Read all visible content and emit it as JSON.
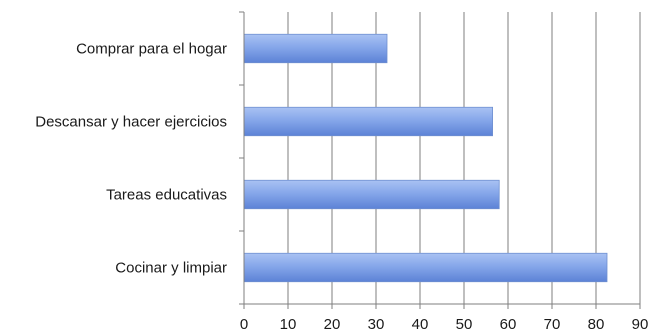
{
  "chart_data": {
    "type": "bar",
    "orientation": "horizontal",
    "categories": [
      "Comprar para el hogar",
      "Descansar y hacer ejercicios",
      "Tareas educativas",
      "Cocinar y limpiar"
    ],
    "values": [
      32.5,
      56.5,
      58,
      82.5
    ],
    "xlim": [
      0,
      90
    ],
    "xticks": [
      "0",
      "10",
      "20",
      "30",
      "40",
      "50",
      "60",
      "70",
      "80",
      "90"
    ],
    "grid": true,
    "legend": "none",
    "colors": {
      "bar_top": "#a9c2f3",
      "bar_mid": "#86a7ea",
      "bar_bottom": "#5c82d6",
      "grid": "#7f7f7f"
    }
  }
}
